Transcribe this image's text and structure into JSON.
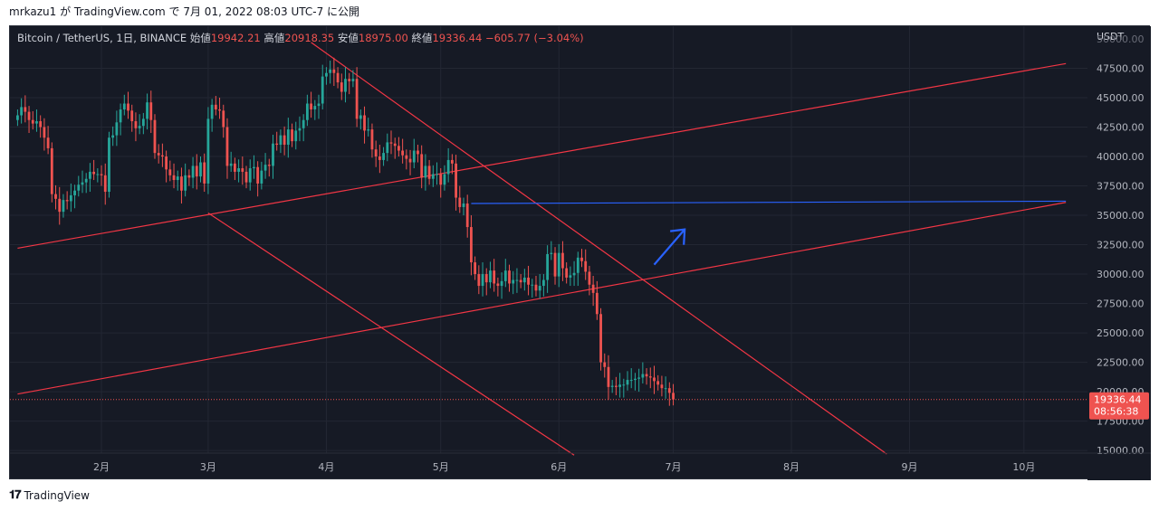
{
  "header": {
    "publish_line": "mrkazu1 が TradingView.com で 7月 01, 2022 08:03 UTC-7 に公開"
  },
  "legend": {
    "symbol": "Bitcoin / TetherUS, 1日, BINANCE",
    "open_label": "始値",
    "open": "19942.21",
    "high_label": "高値",
    "high": "20918.35",
    "low_label": "安値",
    "low": "18975.00",
    "close_label": "終値",
    "close": "19336.44",
    "change": "−605.77 (−3.04%)"
  },
  "footer": {
    "brand": "TradingView"
  },
  "chart_data": {
    "type": "candlestick",
    "currency_label": "USDT",
    "y_ticks": [
      "47500.00",
      "45000.00",
      "42500.00",
      "40000.00",
      "37500.00",
      "35000.00",
      "32500.00",
      "30000.00",
      "27500.00",
      "25000.00",
      "22500.00",
      "20000.00",
      "17500.00",
      "15000.00"
    ],
    "y_top_partial": "50000.00",
    "ylim": [
      14000,
      51500
    ],
    "x_ticks": [
      {
        "label": "2月",
        "day": 32
      },
      {
        "label": "3月",
        "day": 60
      },
      {
        "label": "4月",
        "day": 91
      },
      {
        "label": "5月",
        "day": 121
      },
      {
        "label": "6月",
        "day": 152
      },
      {
        "label": "7月",
        "day": 182
      },
      {
        "label": "8月",
        "day": 213
      },
      {
        "label": "9月",
        "day": 244
      },
      {
        "label": "10月",
        "day": 274
      }
    ],
    "last_price": "19336.44",
    "countdown": "08:56:38",
    "colors": {
      "up": "#26a69a",
      "down": "#ef5350",
      "trend": "#f23645",
      "horizontal": "#2962ff",
      "arrow": "#2962ff",
      "background": "#161a25",
      "grid": "#232733"
    },
    "close_series": [
      [
        10,
        43500
      ],
      [
        11,
        44200
      ],
      [
        12,
        43800
      ],
      [
        13,
        43100
      ],
      [
        14,
        42800
      ],
      [
        15,
        43000
      ],
      [
        16,
        42500
      ],
      [
        17,
        41600
      ],
      [
        18,
        40700
      ],
      [
        19,
        36800
      ],
      [
        20,
        36400
      ],
      [
        21,
        35300
      ],
      [
        22,
        36300
      ],
      [
        23,
        36200
      ],
      [
        24,
        36700
      ],
      [
        25,
        37100
      ],
      [
        26,
        37600
      ],
      [
        27,
        37800
      ],
      [
        28,
        38100
      ],
      [
        29,
        38700
      ],
      [
        30,
        38500
      ],
      [
        31,
        38500
      ],
      [
        32,
        38400
      ],
      [
        33,
        37000
      ],
      [
        34,
        41600
      ],
      [
        35,
        41800
      ],
      [
        36,
        42900
      ],
      [
        37,
        44000
      ],
      [
        38,
        44500
      ],
      [
        39,
        43900
      ],
      [
        40,
        43000
      ],
      [
        41,
        42400
      ],
      [
        42,
        42600
      ],
      [
        43,
        43200
      ],
      [
        44,
        44600
      ],
      [
        45,
        43100
      ],
      [
        46,
        40300
      ],
      [
        47,
        40100
      ],
      [
        48,
        40000
      ],
      [
        49,
        38900
      ],
      [
        50,
        38400
      ],
      [
        51,
        38000
      ],
      [
        52,
        38300
      ],
      [
        53,
        37100
      ],
      [
        54,
        38400
      ],
      [
        55,
        38200
      ],
      [
        56,
        39200
      ],
      [
        57,
        38300
      ],
      [
        58,
        39500
      ],
      [
        59,
        37700
      ],
      [
        60,
        43200
      ],
      [
        61,
        44400
      ],
      [
        62,
        44000
      ],
      [
        63,
        43900
      ],
      [
        64,
        42500
      ],
      [
        65,
        39200
      ],
      [
        66,
        39400
      ],
      [
        67,
        38700
      ],
      [
        68,
        39000
      ],
      [
        69,
        38700
      ],
      [
        70,
        37800
      ],
      [
        71,
        39000
      ],
      [
        72,
        39100
      ],
      [
        73,
        37700
      ],
      [
        74,
        38800
      ],
      [
        75,
        39300
      ],
      [
        76,
        39200
      ],
      [
        77,
        41100
      ],
      [
        78,
        41000
      ],
      [
        79,
        41800
      ],
      [
        80,
        41000
      ],
      [
        81,
        42300
      ],
      [
        82,
        41300
      ],
      [
        83,
        42200
      ],
      [
        84,
        42400
      ],
      [
        85,
        43100
      ],
      [
        86,
        44500
      ],
      [
        87,
        44000
      ],
      [
        88,
        44300
      ],
      [
        89,
        44500
      ],
      [
        90,
        46800
      ],
      [
        91,
        47100
      ],
      [
        92,
        47400
      ],
      [
        93,
        47100
      ],
      [
        94,
        46300
      ],
      [
        95,
        45500
      ],
      [
        96,
        46600
      ],
      [
        97,
        46400
      ],
      [
        98,
        46600
      ],
      [
        99,
        43200
      ],
      [
        100,
        43500
      ],
      [
        101,
        42200
      ],
      [
        102,
        42300
      ],
      [
        103,
        40600
      ],
      [
        104,
        40000
      ],
      [
        105,
        39700
      ],
      [
        106,
        40300
      ],
      [
        107,
        41200
      ],
      [
        108,
        41100
      ],
      [
        109,
        40900
      ],
      [
        110,
        40500
      ],
      [
        111,
        40100
      ],
      [
        112,
        39800
      ],
      [
        113,
        39500
      ],
      [
        114,
        40500
      ],
      [
        115,
        40200
      ],
      [
        116,
        38200
      ],
      [
        117,
        39200
      ],
      [
        118,
        38100
      ],
      [
        119,
        38500
      ],
      [
        120,
        38500
      ],
      [
        121,
        37600
      ],
      [
        122,
        38500
      ],
      [
        123,
        39700
      ],
      [
        124,
        39400
      ],
      [
        125,
        36500
      ],
      [
        126,
        35700
      ],
      [
        127,
        36000
      ],
      [
        128,
        34000
      ],
      [
        129,
        31000
      ],
      [
        130,
        30000
      ],
      [
        131,
        29000
      ],
      [
        132,
        30000
      ],
      [
        133,
        29300
      ],
      [
        134,
        30300
      ],
      [
        135,
        29200
      ],
      [
        136,
        29000
      ],
      [
        137,
        29400
      ],
      [
        138,
        30300
      ],
      [
        139,
        29200
      ],
      [
        140,
        29500
      ],
      [
        141,
        29500
      ],
      [
        142,
        29300
      ],
      [
        143,
        29700
      ],
      [
        144,
        29100
      ],
      [
        145,
        29100
      ],
      [
        146,
        28600
      ],
      [
        147,
        29000
      ],
      [
        148,
        29500
      ],
      [
        149,
        31700
      ],
      [
        150,
        31800
      ],
      [
        151,
        29800
      ],
      [
        152,
        31800
      ],
      [
        153,
        30500
      ],
      [
        154,
        29700
      ],
      [
        155,
        29900
      ],
      [
        156,
        30100
      ],
      [
        157,
        31400
      ],
      [
        158,
        31100
      ],
      [
        159,
        30200
      ],
      [
        160,
        29100
      ],
      [
        161,
        28400
      ],
      [
        162,
        26600
      ],
      [
        163,
        22500
      ],
      [
        164,
        22100
      ],
      [
        165,
        20400
      ],
      [
        166,
        20500
      ],
      [
        167,
        20400
      ],
      [
        168,
        20600
      ],
      [
        169,
        20600
      ],
      [
        170,
        21000
      ],
      [
        171,
        21000
      ],
      [
        172,
        21100
      ],
      [
        173,
        21200
      ],
      [
        174,
        21500
      ],
      [
        175,
        21300
      ],
      [
        176,
        21200
      ],
      [
        177,
        20900
      ],
      [
        178,
        20600
      ],
      [
        179,
        20300
      ],
      [
        180,
        20300
      ],
      [
        181,
        19900
      ],
      [
        182,
        19336
      ]
    ],
    "trendlines": [
      {
        "from": [
          10,
          32200
        ],
        "to": [
          285,
          47900
        ]
      },
      {
        "from": [
          10,
          19800
        ],
        "to": [
          285,
          36100
        ]
      },
      {
        "from": [
          87,
          49700
        ],
        "to": [
          238,
          14700
        ]
      },
      {
        "from": [
          60,
          35200
        ],
        "to": [
          156,
          14600
        ]
      }
    ],
    "horizontal_line": {
      "from": [
        129,
        36000
      ],
      "to": [
        285,
        36200
      ]
    },
    "arrow": {
      "from": [
        177,
        30800
      ],
      "to": [
        185,
        33800
      ]
    }
  }
}
